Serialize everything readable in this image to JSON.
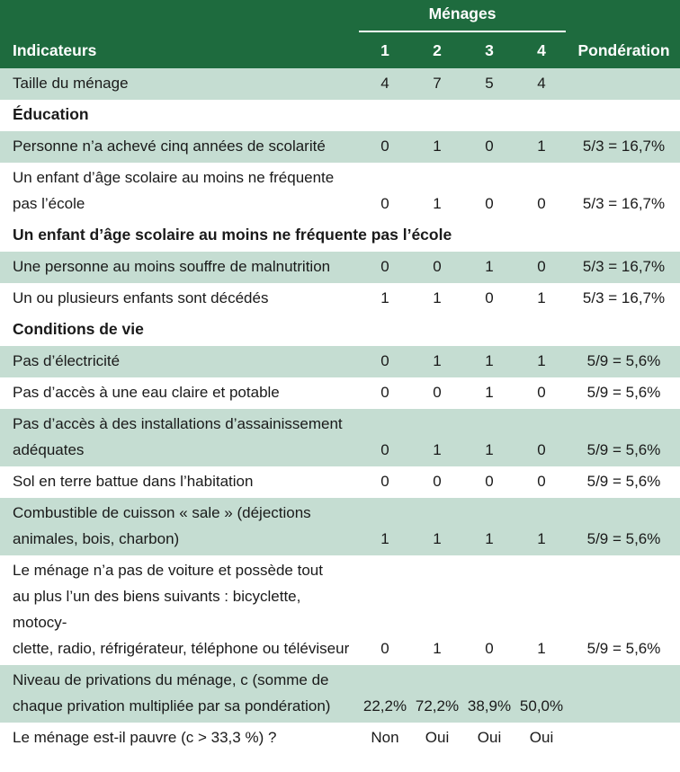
{
  "header": {
    "group_label": "Ménages",
    "indicators_label": "Indicateurs",
    "households": [
      "1",
      "2",
      "3",
      "4"
    ],
    "weight_label": "Pondération"
  },
  "rows": [
    {
      "type": "shade",
      "label": "Taille du ménage",
      "values": [
        "4",
        "7",
        "5",
        "4"
      ],
      "weight": ""
    },
    {
      "type": "section",
      "label": "Éducation"
    },
    {
      "type": "shade",
      "label": "Personne n’a achevé cinq années de scolarité",
      "values": [
        "0",
        "1",
        "0",
        "1"
      ],
      "weight": "5/3 = 16,7%"
    },
    {
      "type": "white",
      "label_lines": [
        "Un enfant d’âge scolaire au moins ne fréquente",
        "pas l’école"
      ],
      "values": [
        "0",
        "1",
        "0",
        "0"
      ],
      "weight": "5/3 = 16,7%"
    },
    {
      "type": "section",
      "label": "Un enfant d’âge scolaire au moins ne fréquente pas l’école"
    },
    {
      "type": "shade",
      "label": "Une personne au moins souffre de malnutrition",
      "values": [
        "0",
        "0",
        "1",
        "0"
      ],
      "weight": "5/3 = 16,7%"
    },
    {
      "type": "white",
      "label": "Un ou plusieurs enfants sont décédés",
      "values": [
        "1",
        "1",
        "0",
        "1"
      ],
      "weight": "5/3 = 16,7%"
    },
    {
      "type": "section",
      "label": "Conditions de vie"
    },
    {
      "type": "shade",
      "label": "Pas d’électricité",
      "values": [
        "0",
        "1",
        "1",
        "1"
      ],
      "weight": "5/9 = 5,6%"
    },
    {
      "type": "white",
      "label": "Pas d’accès à une eau claire et potable",
      "values": [
        "0",
        "0",
        "1",
        "0"
      ],
      "weight": "5/9 = 5,6%"
    },
    {
      "type": "shade",
      "label_lines": [
        "Pas d’accès à des installations d’assainissement",
        "adéquates"
      ],
      "values": [
        "0",
        "1",
        "1",
        "0"
      ],
      "weight": "5/9 = 5,6%"
    },
    {
      "type": "white",
      "label": "Sol en terre battue dans l’habitation",
      "values": [
        "0",
        "0",
        "0",
        "0"
      ],
      "weight": "5/9 = 5,6%"
    },
    {
      "type": "shade",
      "label_lines": [
        "Combustible de cuisson « sale » (déjections",
        "animales, bois, charbon)"
      ],
      "values": [
        "1",
        "1",
        "1",
        "1"
      ],
      "weight": "5/9 = 5,6%"
    },
    {
      "type": "white",
      "label_lines": [
        "Le ménage n’a pas de voiture et possède tout",
        "au plus l’un des biens suivants : bicyclette, motocy-",
        "clette, radio, réfrigérateur, téléphone ou téléviseur"
      ],
      "values": [
        "0",
        "1",
        "0",
        "1"
      ],
      "weight": "5/9 = 5,6%"
    },
    {
      "type": "shade",
      "label_lines": [
        "Niveau de privations du ménage, c (somme de",
        "chaque privation multipliée par sa pondération)"
      ],
      "values": [
        "22,2%",
        "72,2%",
        "38,9%",
        "50,0%"
      ],
      "weight": ""
    },
    {
      "type": "white",
      "label": "Le ménage est-il pauvre (c > 33,3 %) ?",
      "values": [
        "Non",
        "Oui",
        "Oui",
        "Oui"
      ],
      "weight": ""
    }
  ],
  "colors": {
    "header_bg": "#1e6b3e",
    "row_shade": "#c5ddd2",
    "row_white": "#ffffff"
  }
}
